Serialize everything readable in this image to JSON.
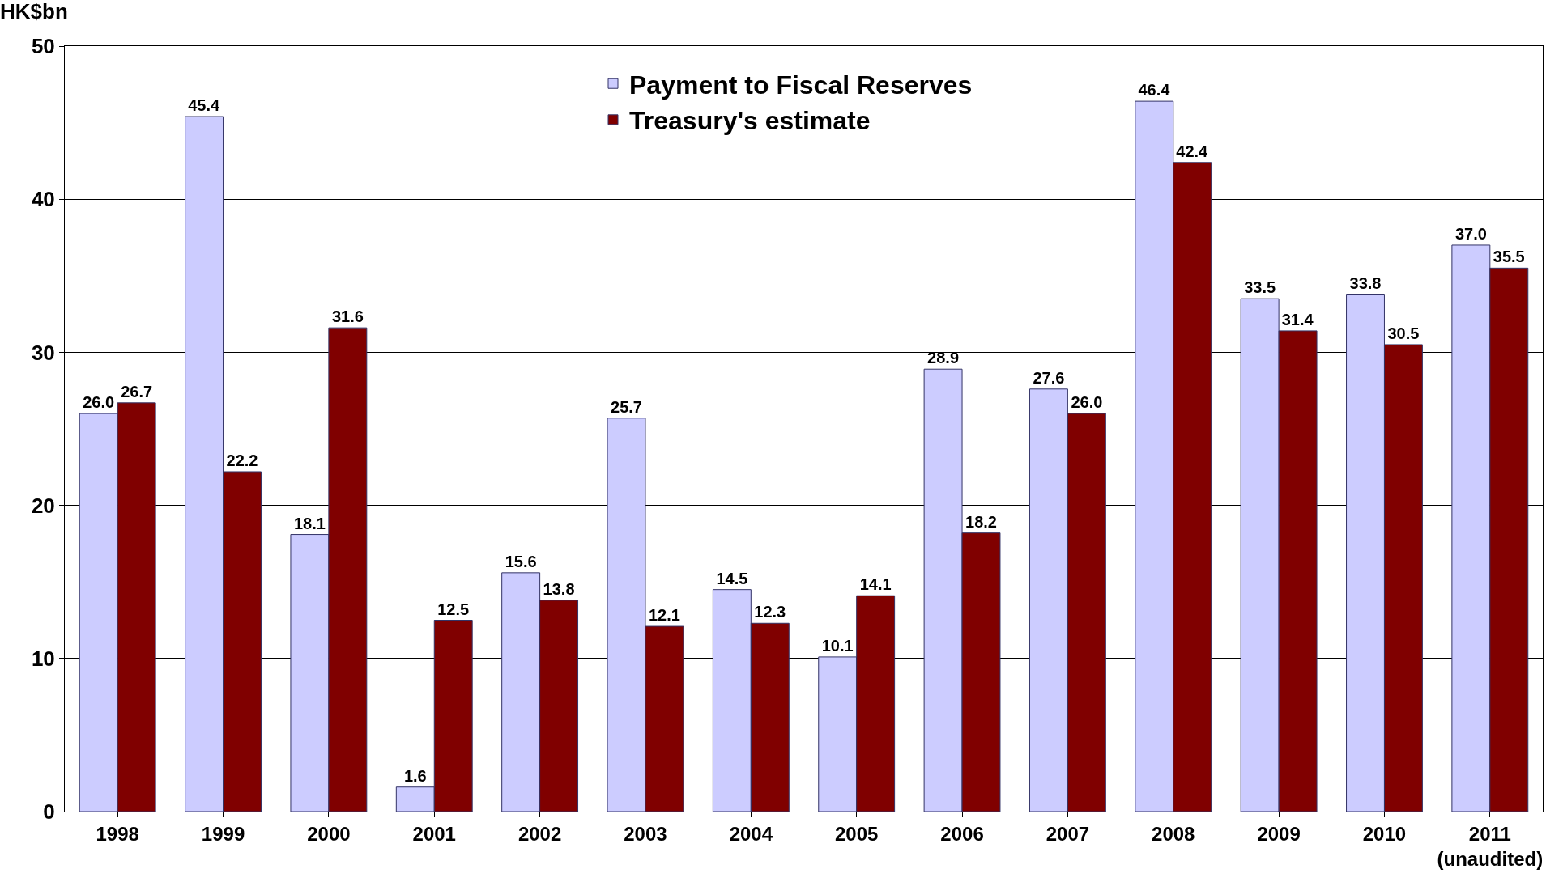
{
  "chart_data": {
    "type": "bar",
    "ylabel": "HK$bn",
    "categories": [
      "1998",
      "1999",
      "2000",
      "2001",
      "2002",
      "2003",
      "2004",
      "2005",
      "2006",
      "2007",
      "2008",
      "2009",
      "2010",
      "2011\n(unaudited)"
    ],
    "series": [
      {
        "name": "Payment to Fiscal Reserves",
        "color": "#ccccff",
        "values": [
          26.0,
          45.4,
          18.1,
          1.6,
          15.6,
          25.7,
          14.5,
          10.1,
          28.9,
          27.6,
          46.4,
          33.5,
          33.8,
          37.0
        ],
        "value_labels": [
          "26.0",
          "45.4",
          "18.1",
          "1.6",
          "15.6",
          "25.7",
          "14.5",
          "10.1",
          "28.9",
          "27.6",
          "46.4",
          "33.5",
          "33.8",
          "37.0"
        ]
      },
      {
        "name": "Treasury's estimate",
        "color": "#800000",
        "values": [
          26.7,
          22.2,
          31.6,
          12.5,
          13.8,
          12.1,
          12.3,
          14.1,
          18.2,
          26.0,
          42.4,
          31.4,
          30.5,
          35.5
        ],
        "value_labels": [
          "26.7",
          "22.2",
          "31.6",
          "12.5",
          "13.8",
          "12.1",
          "12.3",
          "14.1",
          "18.2",
          "26.0",
          "42.4",
          "31.4",
          "30.5",
          "35.5"
        ]
      }
    ],
    "ylim": [
      0,
      50
    ],
    "yticks": [
      0,
      10,
      20,
      30,
      40,
      50
    ],
    "grid": "y",
    "legend": "top"
  }
}
